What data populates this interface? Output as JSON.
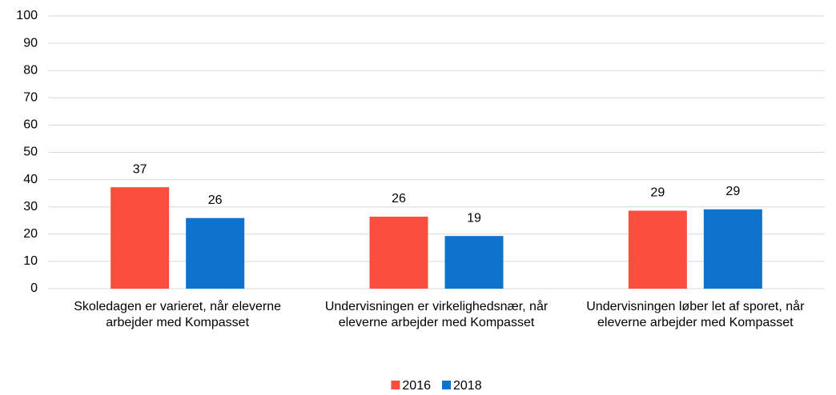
{
  "chart_data": {
    "type": "bar",
    "categories": [
      "Skoledagen er varieret, når eleverne arbejder med Kompasset",
      "Undervisningen er virkelighedsnær, når eleverne arbejder med Kompasset",
      "Undervisningen løber let af sporet, når eleverne arbejder med Kompasset"
    ],
    "series": [
      {
        "name": "2016",
        "color": "#fa4f3c",
        "values": [
          37.2,
          26.4,
          28.6
        ],
        "value_labels": [
          "37",
          "26",
          "29"
        ]
      },
      {
        "name": "2018",
        "color": "#0f72cc",
        "values": [
          25.9,
          19.3,
          29.1
        ],
        "value_labels": [
          "26",
          "19",
          "29"
        ]
      }
    ],
    "ylim": [
      0,
      100
    ],
    "yticks": [
      0,
      10,
      20,
      30,
      40,
      50,
      60,
      70,
      80,
      90,
      100
    ],
    "grid": true,
    "legend": "bottom"
  }
}
